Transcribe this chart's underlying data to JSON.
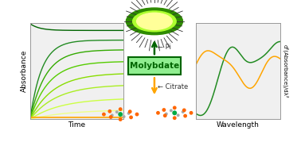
{
  "left_plot": {
    "xlabel": "Time",
    "ylabel": "Absorbance",
    "bg_color": "#f0f0f0",
    "curve_colors_green": [
      "#006400",
      "#228B22",
      "#33AA00",
      "#55CC00",
      "#88DD00",
      "#AAEE22",
      "#CCFF44",
      "#EEFF88"
    ],
    "orange_color": "#FFA500",
    "ylim": [
      0,
      1
    ],
    "xlim": [
      0,
      1
    ],
    "plateaus": [
      0.92,
      0.82,
      0.72,
      0.6,
      0.48,
      0.36,
      0.22,
      0.1
    ],
    "decay_rates": [
      10,
      8,
      6,
      5,
      4,
      3.5,
      3,
      2.5
    ]
  },
  "right_plot": {
    "xlabel": "Wavelength",
    "ylabel": "d²(Absorbance)/dλ²",
    "bg_color": "#f0f0f0",
    "green_color": "#228B22",
    "orange_color": "#FFA500"
  },
  "molybdate_box": {
    "text": "Molybdate",
    "box_color": "#90EE90",
    "text_color": "#006400",
    "border_color": "#006400"
  },
  "pi_label": "← Pi",
  "citrate_label": "← Citrate",
  "arrow_up_color": "#006400",
  "arrow_down_color": "#FFA500",
  "fig_bg": "#ffffff",
  "vesicle_yellow": "#FFFF99",
  "vesicle_ring": "#ADFF2F",
  "vesicle_dark": "#2E8B00"
}
